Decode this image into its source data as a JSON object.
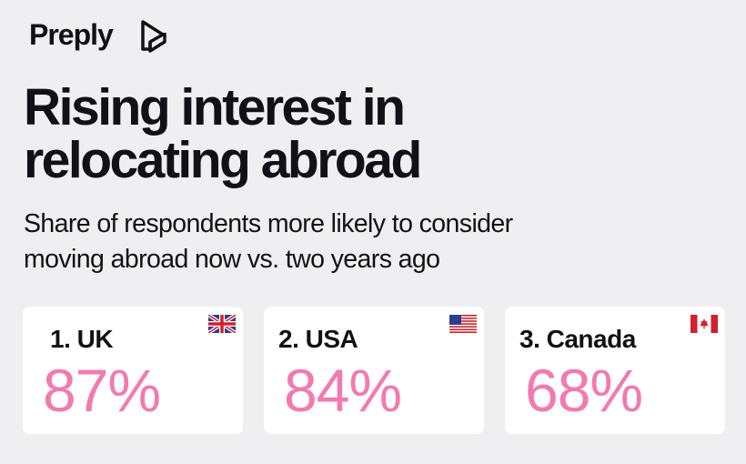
{
  "header": {
    "brand": "Preply",
    "title": [
      "Rising interest in",
      "relocating abroad"
    ],
    "subtitle": [
      "Share of respondents more likely to consider",
      "moving abroad now vs. two years ago"
    ]
  },
  "cards": [
    {
      "label": "1. UK",
      "value": "87%"
    },
    {
      "label": "2. USA",
      "value": "84%"
    },
    {
      "label": "3. Canada",
      "value": "68%"
    }
  ]
}
